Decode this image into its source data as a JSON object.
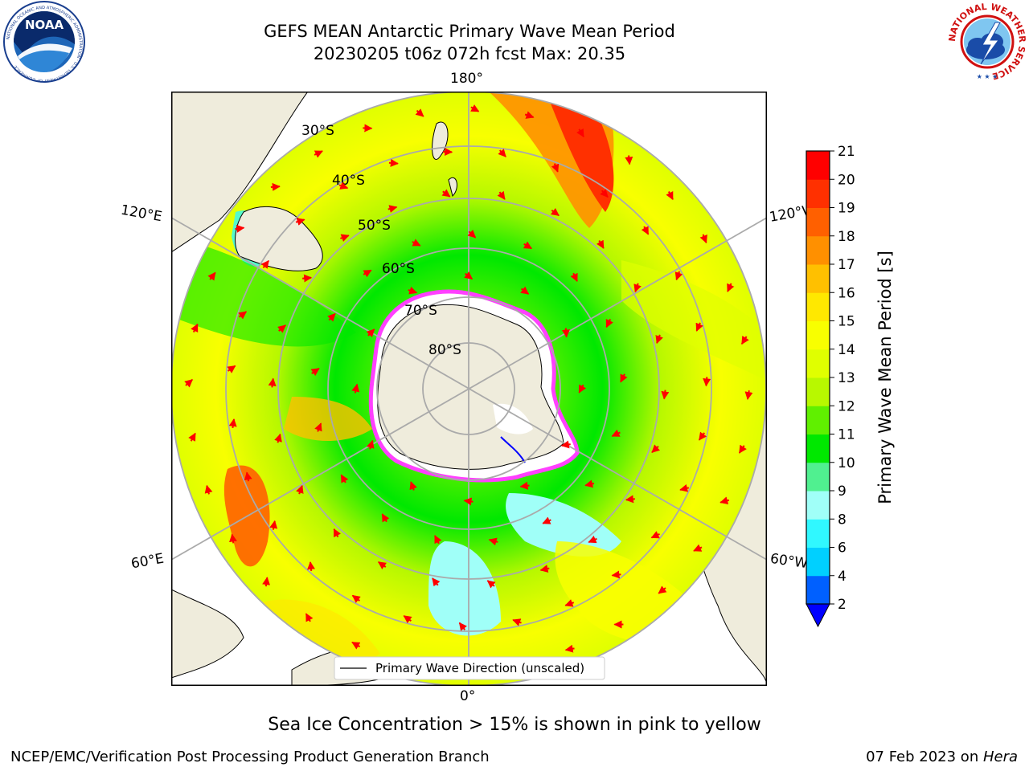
{
  "title": {
    "line1": "GEFS MEAN Antarctic Primary Wave Mean Period",
    "line2": "20230205 t06z 072h fcst   Max: 20.35"
  },
  "logos": {
    "left": "NOAA",
    "left_ring_text": "NATIONAL OCEANIC AND ATMOSPHERIC ADMINISTRATION · U.S. DEPARTMENT OF COMMERCE",
    "right_ring_text": "NATIONAL WEATHER SERVICE"
  },
  "map": {
    "projection": "south-polar-stereographic",
    "longitude_labels": {
      "top": "180°",
      "bottom": "0°",
      "left_upper": "120°E",
      "left_lower": "60°E",
      "right_upper": "120°W",
      "right_lower": "60°W"
    },
    "latitude_labels": [
      "30°S",
      "40°S",
      "50°S",
      "60°S",
      "70°S",
      "80°S"
    ],
    "legend_label": "Primary Wave Direction (unscaled)",
    "arrow_color": "#ff0000",
    "land_color": "#efecdc",
    "ice_colors": [
      "#ff40ff",
      "#ffffff",
      "#ffd000"
    ]
  },
  "colorbar": {
    "label": "Primary Wave Mean Period [s]",
    "ticks": [
      "2",
      "4",
      "6",
      "8",
      "9",
      "10",
      "11",
      "12",
      "13",
      "14",
      "15",
      "16",
      "17",
      "18",
      "19",
      "20",
      "21"
    ],
    "colors": [
      "#0060ff",
      "#00d0ff",
      "#30f8ff",
      "#a0fff8",
      "#50f090",
      "#00e800",
      "#60f000",
      "#b8f800",
      "#e0ff00",
      "#f8ff00",
      "#ffe800",
      "#ffc000",
      "#ff9000",
      "#ff6000",
      "#ff3000",
      "#ff0000"
    ],
    "extend_min_color": "#0000ff"
  },
  "caption": "Sea Ice Concentration > 15% is shown in pink to yellow",
  "footer": {
    "left": "NCEP/EMC/Verification Post Processing Product Generation Branch",
    "right_prefix": "07 Feb 2023 on ",
    "right_host": "Hera"
  }
}
